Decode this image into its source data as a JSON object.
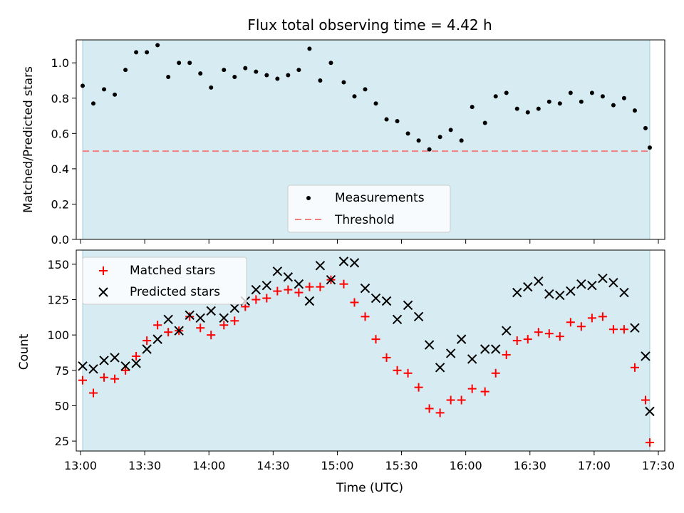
{
  "chart_data": [
    {
      "type": "scatter",
      "title": "Flux total observing time = 4.42 h",
      "xlabel": "",
      "ylabel": "Matched/Predicted stars",
      "ylim": [
        0,
        1.13
      ],
      "yticks": [
        "0.0",
        "0.2",
        "0.4",
        "0.6",
        "0.8",
        "1.0"
      ],
      "shaded_span": [
        "13:01",
        "17:26"
      ],
      "threshold": 0.5,
      "legend": {
        "position": "lower-center",
        "entries": [
          "Measurements",
          "Threshold"
        ]
      },
      "series": [
        {
          "name": "Measurements",
          "color": "#000000",
          "marker": "dot",
          "x": [
            "13:01",
            "13:06",
            "13:11",
            "13:16",
            "13:21",
            "13:26",
            "13:31",
            "13:36",
            "13:41",
            "13:46",
            "13:51",
            "13:56",
            "14:01",
            "14:07",
            "14:12",
            "14:17",
            "14:22",
            "14:27",
            "14:32",
            "14:37",
            "14:42",
            "14:47",
            "14:52",
            "14:57",
            "15:03",
            "15:08",
            "15:13",
            "15:18",
            "15:23",
            "15:28",
            "15:33",
            "15:38",
            "15:43",
            "15:48",
            "15:53",
            "15:58",
            "16:03",
            "16:09",
            "16:14",
            "16:19",
            "16:24",
            "16:29",
            "16:34",
            "16:39",
            "16:44",
            "16:49",
            "16:54",
            "16:59",
            "17:04",
            "17:09",
            "17:14",
            "17:19",
            "17:24",
            "17:26"
          ],
          "y": [
            0.87,
            0.77,
            0.85,
            0.82,
            0.96,
            1.06,
            1.06,
            1.1,
            0.92,
            1.0,
            1.0,
            0.94,
            0.86,
            0.96,
            0.92,
            0.97,
            0.95,
            0.93,
            0.91,
            0.93,
            0.96,
            1.08,
            0.9,
            1.0,
            0.89,
            0.81,
            0.85,
            0.77,
            0.68,
            0.67,
            0.6,
            0.56,
            0.51,
            0.58,
            0.62,
            0.56,
            0.75,
            0.66,
            0.81,
            0.83,
            0.74,
            0.72,
            0.74,
            0.78,
            0.77,
            0.83,
            0.78,
            0.83,
            0.81,
            0.76,
            0.8,
            0.73,
            0.63,
            0.52
          ]
        },
        {
          "name": "Threshold",
          "color": "#f08080",
          "style": "dashed",
          "y": 0.5
        }
      ]
    },
    {
      "type": "scatter",
      "title": "",
      "xlabel": "Time (UTC)",
      "ylabel": "Count",
      "ylim": [
        18,
        160
      ],
      "yticks": [
        "25",
        "50",
        "75",
        "100",
        "125",
        "150"
      ],
      "xticks": [
        "13:00",
        "13:30",
        "14:00",
        "14:30",
        "15:00",
        "15:30",
        "16:00",
        "16:30",
        "17:00",
        "17:30"
      ],
      "shaded_span": [
        "13:01",
        "17:26"
      ],
      "legend": {
        "position": "upper-left",
        "entries": [
          "Matched stars",
          "Predicted stars"
        ]
      },
      "series": [
        {
          "name": "Matched stars",
          "color": "#ff0000",
          "marker": "plus",
          "x": [
            "13:01",
            "13:06",
            "13:11",
            "13:16",
            "13:21",
            "13:26",
            "13:31",
            "13:36",
            "13:41",
            "13:46",
            "13:51",
            "13:56",
            "14:01",
            "14:07",
            "14:12",
            "14:17",
            "14:22",
            "14:27",
            "14:32",
            "14:37",
            "14:42",
            "14:47",
            "14:52",
            "14:57",
            "15:03",
            "15:08",
            "15:13",
            "15:18",
            "15:23",
            "15:28",
            "15:33",
            "15:38",
            "15:43",
            "15:48",
            "15:53",
            "15:58",
            "16:03",
            "16:09",
            "16:14",
            "16:19",
            "16:24",
            "16:29",
            "16:34",
            "16:39",
            "16:44",
            "16:49",
            "16:54",
            "16:59",
            "17:04",
            "17:09",
            "17:14",
            "17:19",
            "17:24",
            "17:26"
          ],
          "y": [
            68,
            59,
            70,
            69,
            75,
            85,
            96,
            107,
            102,
            103,
            113,
            105,
            100,
            107,
            110,
            120,
            125,
            126,
            131,
            132,
            130,
            134,
            134,
            139,
            136,
            123,
            113,
            97,
            84,
            75,
            73,
            63,
            48,
            45,
            54,
            54,
            62,
            60,
            73,
            86,
            96,
            97,
            102,
            101,
            99,
            109,
            106,
            112,
            113,
            104,
            104,
            77,
            54,
            24
          ]
        },
        {
          "name": "Predicted stars",
          "color": "#000000",
          "marker": "x",
          "x": [
            "13:01",
            "13:06",
            "13:11",
            "13:16",
            "13:21",
            "13:26",
            "13:31",
            "13:36",
            "13:41",
            "13:46",
            "13:51",
            "13:56",
            "14:01",
            "14:07",
            "14:12",
            "14:17",
            "14:22",
            "14:27",
            "14:32",
            "14:37",
            "14:42",
            "14:47",
            "14:52",
            "14:57",
            "15:03",
            "15:08",
            "15:13",
            "15:18",
            "15:23",
            "15:28",
            "15:33",
            "15:38",
            "15:43",
            "15:48",
            "15:53",
            "15:58",
            "16:03",
            "16:09",
            "16:14",
            "16:19",
            "16:24",
            "16:29",
            "16:34",
            "16:39",
            "16:44",
            "16:49",
            "16:54",
            "16:59",
            "17:04",
            "17:09",
            "17:14",
            "17:19",
            "17:24",
            "17:26"
          ],
          "y": [
            78,
            76,
            82,
            84,
            78,
            80,
            90,
            97,
            111,
            103,
            114,
            112,
            117,
            112,
            119,
            124,
            132,
            135,
            145,
            141,
            136,
            124,
            149,
            139,
            152,
            151,
            133,
            126,
            124,
            111,
            121,
            113,
            93,
            77,
            87,
            97,
            83,
            90,
            90,
            103,
            130,
            134,
            138,
            129,
            128,
            131,
            136,
            135,
            140,
            137,
            130,
            105,
            85,
            46
          ]
        }
      ]
    }
  ]
}
